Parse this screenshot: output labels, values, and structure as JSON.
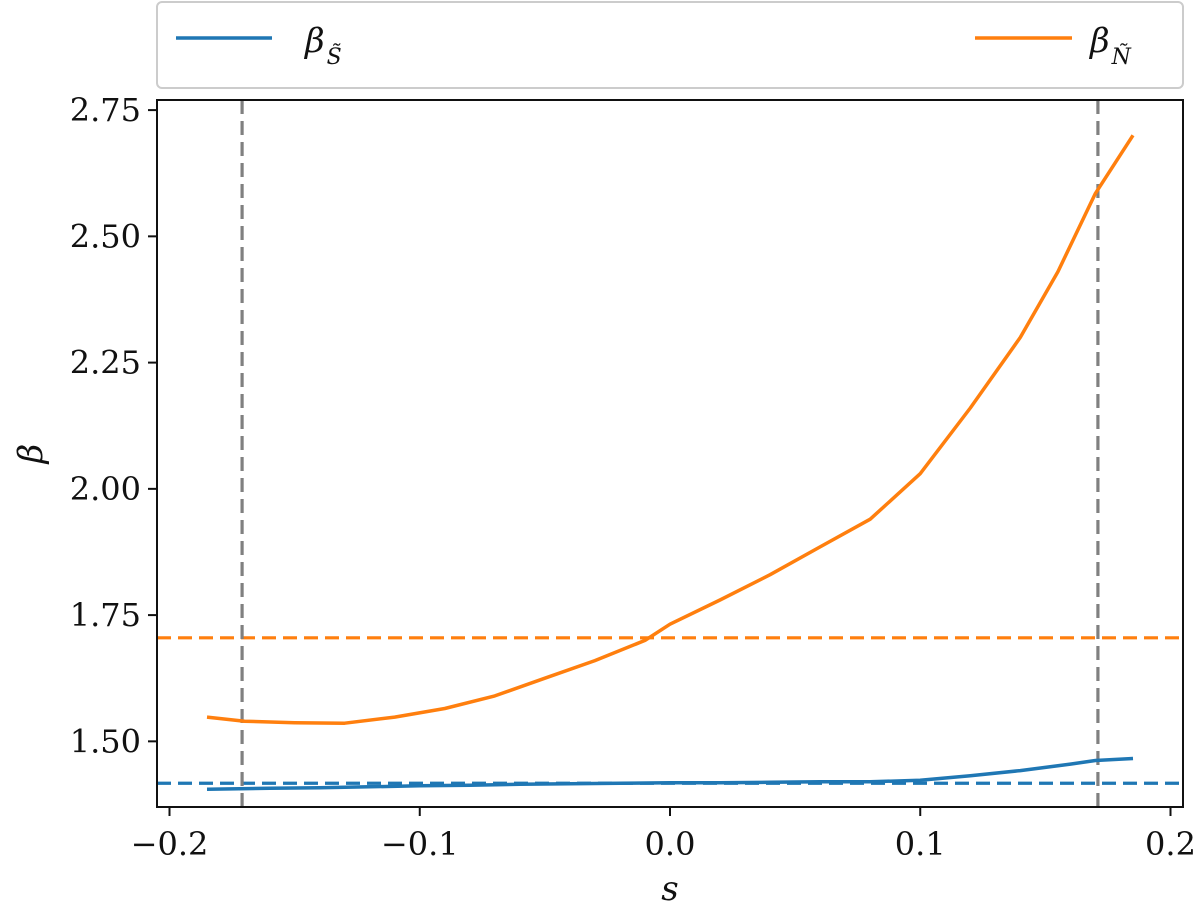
{
  "chart_data": {
    "type": "line",
    "title": "",
    "xlabel": "s",
    "ylabel": "β",
    "xlim": [
      -0.205,
      0.205
    ],
    "ylim": [
      1.37,
      2.77
    ],
    "xticks": [
      -0.2,
      -0.1,
      0.0,
      0.1,
      0.2
    ],
    "xtick_labels": [
      "−0.2",
      "−0.1",
      "0.0",
      "0.1",
      "0.2"
    ],
    "yticks": [
      1.5,
      1.75,
      2.0,
      2.25,
      2.5,
      2.75
    ],
    "ytick_labels": [
      "1.50",
      "1.75",
      "2.00",
      "2.25",
      "2.50",
      "2.75"
    ],
    "grid": false,
    "legend_placement": "top, above plot",
    "series": [
      {
        "name": "β",
        "subscript": "S̃",
        "color": "#1f77b4",
        "x": [
          -0.185,
          -0.16,
          -0.14,
          -0.12,
          -0.1,
          -0.08,
          -0.06,
          -0.04,
          -0.02,
          0.0,
          0.02,
          0.04,
          0.06,
          0.08,
          0.1,
          0.12,
          0.14,
          0.16,
          0.17,
          0.185
        ],
        "y": [
          1.405,
          1.407,
          1.408,
          1.41,
          1.412,
          1.413,
          1.415,
          1.416,
          1.417,
          1.418,
          1.418,
          1.419,
          1.42,
          1.42,
          1.423,
          1.432,
          1.442,
          1.455,
          1.462,
          1.466
        ]
      },
      {
        "name": "β",
        "subscript": "Ñ",
        "color": "#ff7f0e",
        "x": [
          -0.185,
          -0.17,
          -0.15,
          -0.13,
          -0.11,
          -0.09,
          -0.07,
          -0.05,
          -0.03,
          -0.01,
          0.0,
          0.02,
          0.04,
          0.06,
          0.08,
          0.1,
          0.12,
          0.14,
          0.155,
          0.17,
          0.185
        ],
        "y": [
          1.548,
          1.54,
          1.537,
          1.536,
          1.548,
          1.565,
          1.59,
          1.625,
          1.66,
          1.7,
          1.732,
          1.78,
          1.83,
          1.885,
          1.94,
          2.03,
          2.16,
          2.3,
          2.43,
          2.585,
          2.7
        ]
      }
    ],
    "reference_lines": [
      {
        "orientation": "horizontal",
        "value": 1.705,
        "color": "#ff7f0e",
        "style": "dashed"
      },
      {
        "orientation": "horizontal",
        "value": 1.417,
        "color": "#1f77b4",
        "style": "dashed"
      },
      {
        "orientation": "vertical",
        "value": -0.171,
        "color": "#808080",
        "style": "dashed"
      },
      {
        "orientation": "vertical",
        "value": 0.171,
        "color": "#808080",
        "style": "dashed"
      }
    ]
  }
}
